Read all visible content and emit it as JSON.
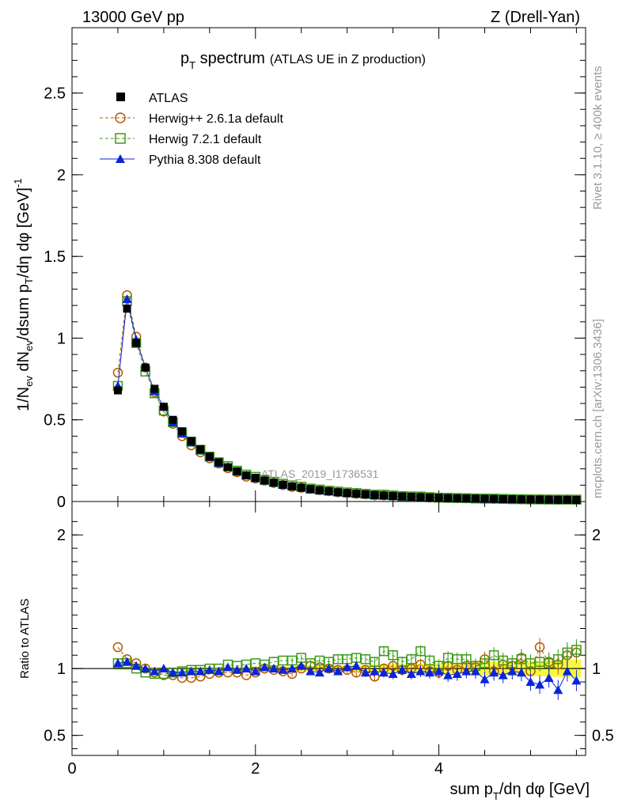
{
  "header": {
    "left": "13000 GeV pp",
    "right": "Z (Drell-Yan)"
  },
  "side": {
    "rivet": "Rivet 3.1.10, ≥ 400k events",
    "mcplots": "mcplots.cern.ch [arXiv:1306.3436]"
  },
  "colors": {
    "data": "#000000",
    "herwigpp": "#b35900",
    "herwig7": "#3c9a1a",
    "pythia": "#0a24d8",
    "band": "#f4f400"
  },
  "chart_data": {
    "type": "scatter",
    "title": "pT spectrum",
    "title_parts": {
      "main": "p",
      "sub": "T",
      "rest": " spectrum",
      "note": "(ATLAS UE in Z production)"
    },
    "analysis_label": "ATLAS_2019_I1736531",
    "xlabel": "sum pT/dη dφ [GeV]",
    "xlabel_parts": {
      "a": "sum p",
      "sub": "T",
      "b": "/dη dφ [GeV]"
    },
    "ylabel": "1/Nev dNev/dsum pT/dη dφ [GeV]^-1",
    "ylabel_parts": {
      "a": "1/N",
      "sub1": "ev",
      "b": " dN",
      "sub2": "ev",
      "c": "/dsum p",
      "sub3": "T",
      "d": "/dη dφ  [GeV]",
      "sup": "-1"
    },
    "ratio_ylabel": "Ratio to ATLAS",
    "xlim": [
      0,
      5.6
    ],
    "ylim": [
      0,
      2.9
    ],
    "ratio_ylim": [
      0.35,
      2.25
    ],
    "xticks": [
      0,
      2,
      4
    ],
    "yticks": [
      0,
      0.5,
      1,
      1.5,
      2,
      2.5
    ],
    "ratio_yticks": [
      0.5,
      1,
      2
    ],
    "ratio_ytick_labels": [
      "0.5",
      "1",
      "2"
    ],
    "tick_labels_main": [
      "0",
      "0.5",
      "1",
      "1.5",
      "2",
      "2.5"
    ],
    "tick_labels_x": [
      "0",
      "2",
      "4"
    ],
    "x": [
      0.5,
      0.6,
      0.7,
      0.8,
      0.9,
      1.0,
      1.1,
      1.2,
      1.3,
      1.4,
      1.5,
      1.6,
      1.7,
      1.8,
      1.9,
      2.0,
      2.1,
      2.2,
      2.3,
      2.4,
      2.5,
      2.6,
      2.7,
      2.8,
      2.9,
      3.0,
      3.1,
      3.2,
      3.3,
      3.4,
      3.5,
      3.6,
      3.7,
      3.8,
      3.9,
      4.0,
      4.1,
      4.2,
      4.3,
      4.4,
      4.5,
      4.6,
      4.7,
      4.8,
      4.9,
      5.0,
      5.1,
      5.2,
      5.3,
      5.4,
      5.5
    ],
    "data_values": [
      0.68,
      1.18,
      0.97,
      0.82,
      0.69,
      0.58,
      0.5,
      0.43,
      0.37,
      0.32,
      0.275,
      0.24,
      0.21,
      0.185,
      0.16,
      0.145,
      0.128,
      0.115,
      0.103,
      0.093,
      0.084,
      0.076,
      0.069,
      0.063,
      0.057,
      0.052,
      0.048,
      0.044,
      0.04,
      0.037,
      0.034,
      0.031,
      0.029,
      0.027,
      0.025,
      0.023,
      0.021,
      0.02,
      0.019,
      0.018,
      0.017,
      0.016,
      0.015,
      0.014,
      0.013,
      0.0125,
      0.012,
      0.0115,
      0.011,
      0.0105,
      0.01
    ],
    "series": [
      {
        "name": "ATLAS",
        "marker": "square-filled",
        "ratio": [
          1,
          1,
          1,
          1,
          1,
          1,
          1,
          1,
          1,
          1,
          1,
          1,
          1,
          1,
          1,
          1,
          1,
          1,
          1,
          1,
          1,
          1,
          1,
          1,
          1,
          1,
          1,
          1,
          1,
          1,
          1,
          1,
          1,
          1,
          1,
          1,
          1,
          1,
          1,
          1,
          1,
          1,
          1,
          1,
          1,
          1,
          1,
          1,
          1,
          1,
          1
        ]
      },
      {
        "name": "Herwig++ 2.6.1a default",
        "marker": "circle-open",
        "line": "dashed",
        "ratio": [
          1.16,
          1.07,
          1.04,
          1.0,
          0.97,
          0.95,
          0.95,
          0.93,
          0.93,
          0.94,
          0.96,
          0.97,
          0.97,
          0.97,
          0.95,
          0.97,
          1.0,
          0.99,
          0.98,
          0.96,
          1.0,
          1.02,
          1.01,
          1.0,
          0.99,
          0.99,
          0.97,
          0.99,
          0.94,
          1.0,
          1.02,
          0.99,
          1.0,
          1.03,
          0.98,
          0.97,
          1.02,
          0.99,
          1.02,
          1.01,
          1.07,
          0.98,
          1.03,
          1.02,
          1.08,
          0.98,
          1.16,
          1.05,
          1.03,
          1.1,
          1.12
        ]
      },
      {
        "name": "Herwig 7.2.1 default",
        "marker": "square-open",
        "line": "dashed",
        "ratio": [
          1.04,
          1.04,
          1.0,
          0.97,
          0.96,
          0.96,
          0.97,
          0.98,
          0.99,
          0.99,
          1.0,
          1.0,
          1.03,
          1.02,
          1.03,
          1.04,
          1.03,
          1.05,
          1.06,
          1.06,
          1.08,
          1.04,
          1.06,
          1.05,
          1.07,
          1.07,
          1.08,
          1.07,
          1.05,
          1.13,
          1.1,
          1.05,
          1.07,
          1.13,
          1.06,
          1.02,
          1.08,
          1.07,
          1.07,
          1.02,
          1.04,
          1.1,
          1.06,
          1.04,
          1.07,
          1.04,
          1.05,
          1.04,
          1.07,
          1.12,
          1.14
        ]
      },
      {
        "name": "Pythia 8.308 default",
        "marker": "triangle-filled",
        "line": "solid",
        "ratio": [
          1.04,
          1.05,
          1.02,
          1.0,
          0.98,
          1.0,
          0.97,
          0.97,
          0.98,
          0.98,
          0.99,
          0.98,
          1.01,
          0.99,
          1.0,
          0.98,
          1.01,
          1.0,
          0.99,
          1.0,
          1.02,
          0.98,
          0.97,
          1.0,
          0.98,
          1.01,
          1.02,
          0.97,
          0.98,
          0.97,
          0.96,
          0.99,
          0.96,
          0.98,
          0.97,
          0.98,
          0.95,
          0.96,
          0.98,
          0.98,
          0.92,
          0.97,
          0.95,
          0.98,
          0.97,
          0.9,
          0.88,
          0.93,
          0.84,
          0.98,
          0.91
        ]
      }
    ],
    "ratio_errors": [
      0.01,
      0.01,
      0.01,
      0.01,
      0.01,
      0.01,
      0.01,
      0.01,
      0.01,
      0.01,
      0.01,
      0.01,
      0.012,
      0.012,
      0.012,
      0.014,
      0.014,
      0.015,
      0.016,
      0.017,
      0.018,
      0.02,
      0.02,
      0.022,
      0.024,
      0.025,
      0.027,
      0.028,
      0.03,
      0.031,
      0.033,
      0.034,
      0.035,
      0.037,
      0.038,
      0.04,
      0.042,
      0.043,
      0.045,
      0.046,
      0.048,
      0.05,
      0.05,
      0.052,
      0.054,
      0.056,
      0.058,
      0.06,
      0.062,
      0.064,
      0.066
    ],
    "legend_position": "top-left"
  }
}
